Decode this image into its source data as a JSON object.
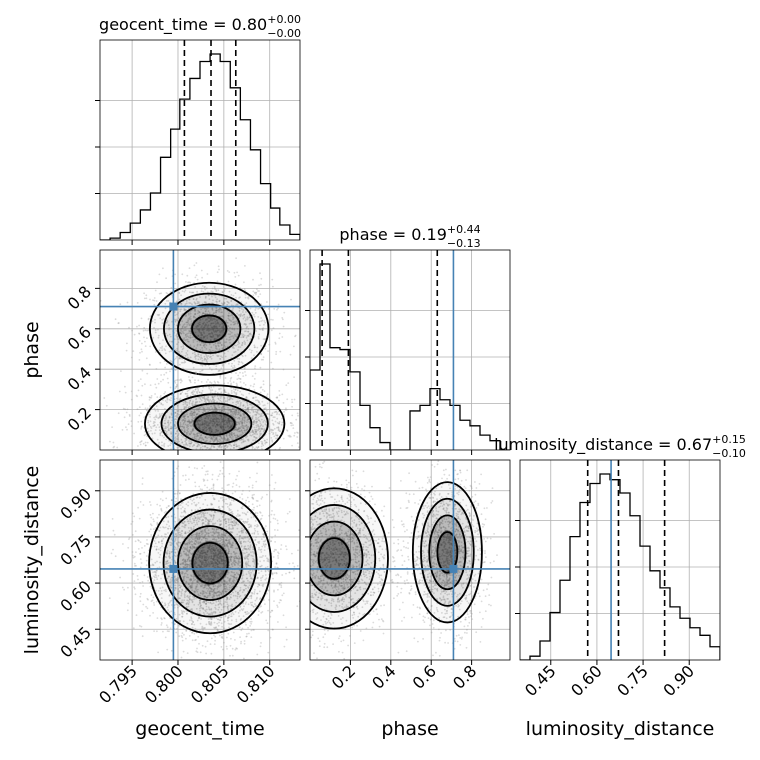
{
  "chart_data": {
    "type": "corner",
    "parameters": [
      {
        "key": "geocent_time",
        "label": "geocent_time",
        "range": [
          0.7915,
          0.8133
        ],
        "ticks": [
          0.795,
          0.8,
          0.805,
          0.81
        ],
        "tick_labels": [
          "0.795",
          "0.800",
          "0.805",
          "0.810"
        ],
        "truth": 0.7995,
        "median": 0.8036,
        "lower": 0.8007,
        "upper": 0.8063,
        "title": {
          "name": "geocent_time",
          "value": "0.80",
          "plus": "+0.00",
          "minus": "−0.00"
        },
        "hist_bins": [
          0.7915,
          0.7926,
          0.7937,
          0.7948,
          0.7959,
          0.797,
          0.7981,
          0.7992,
          0.8002,
          0.8013,
          0.8024,
          0.8035,
          0.8046,
          0.8057,
          0.8068,
          0.8079,
          0.809,
          0.8101,
          0.8111,
          0.8122,
          0.8133
        ],
        "hist_counts": [
          0.0,
          0.01,
          0.04,
          0.09,
          0.16,
          0.25,
          0.44,
          0.59,
          0.75,
          0.86,
          0.95,
          0.99,
          0.95,
          0.81,
          0.64,
          0.48,
          0.3,
          0.17,
          0.08,
          0.03
        ]
      },
      {
        "key": "phase",
        "label": "phase",
        "range": [
          0.0,
          0.99
        ],
        "ticks": [
          0.2,
          0.4,
          0.6,
          0.8
        ],
        "tick_labels": [
          "0.2",
          "0.4",
          "0.6",
          "0.8"
        ],
        "truth": 0.71,
        "median": 0.19,
        "lower": 0.06,
        "upper": 0.63,
        "title": {
          "name": "phase",
          "value": "0.19",
          "plus": "+0.44",
          "minus": "−0.13"
        },
        "hist_bins": [
          0.0,
          0.0495,
          0.099,
          0.1485,
          0.198,
          0.2475,
          0.297,
          0.3465,
          0.396,
          0.4455,
          0.495,
          0.5445,
          0.594,
          0.6435,
          0.693,
          0.7425,
          0.792,
          0.8415,
          0.891,
          0.9405,
          0.99
        ],
        "hist_counts": [
          0.43,
          1.0,
          0.55,
          0.54,
          0.42,
          0.24,
          0.12,
          0.04,
          0.0,
          0.0,
          0.21,
          0.24,
          0.33,
          0.27,
          0.24,
          0.16,
          0.13,
          0.08,
          0.05,
          0.0
        ]
      },
      {
        "key": "luminosity_distance",
        "label": "luminosity_distance",
        "range": [
          0.35,
          1.0
        ],
        "ticks": [
          0.45,
          0.6,
          0.75,
          0.9
        ],
        "tick_labels": [
          "0.45",
          "0.60",
          "0.75",
          "0.90"
        ],
        "truth": 0.646,
        "median": 0.67,
        "lower": 0.57,
        "upper": 0.82,
        "title": {
          "name": "luminosity_distance",
          "value": "0.67",
          "plus": "+0.15",
          "minus": "−0.10"
        },
        "hist_bins": [
          0.35,
          0.3825,
          0.415,
          0.4475,
          0.48,
          0.5125,
          0.545,
          0.5775,
          0.61,
          0.6425,
          0.675,
          0.7075,
          0.74,
          0.7725,
          0.805,
          0.8375,
          0.87,
          0.9025,
          0.935,
          0.9675,
          1.0
        ],
        "hist_counts": [
          0.0,
          0.02,
          0.1,
          0.25,
          0.42,
          0.65,
          0.83,
          0.93,
          0.98,
          0.95,
          0.88,
          0.76,
          0.6,
          0.47,
          0.38,
          0.28,
          0.22,
          0.17,
          0.13,
          0.07
        ]
      }
    ],
    "density_blobs": [
      {
        "pair": "phase_vs_geocent_time",
        "x": 0.8034,
        "y": 0.6,
        "sx": 0.0034,
        "sy": 0.12,
        "n": 1400
      },
      {
        "pair": "phase_vs_geocent_time",
        "x": 0.804,
        "y": 0.13,
        "sx": 0.004,
        "sy": 0.1,
        "n": 2200
      },
      {
        "pair": "luminosity_distance_vs_geocent_time",
        "x": 0.8035,
        "y": 0.665,
        "sx": 0.0035,
        "sy": 0.12,
        "n": 3200
      },
      {
        "pair": "luminosity_distance_vs_phase",
        "x": 0.12,
        "y": 0.68,
        "sx": 0.14,
        "sy": 0.12,
        "n": 1700
      },
      {
        "pair": "luminosity_distance_vs_phase",
        "x": 0.68,
        "y": 0.7,
        "sx": 0.09,
        "sy": 0.12,
        "n": 1400
      }
    ],
    "grid": true,
    "truth_color": "#4682b4",
    "point_color": "#999999"
  }
}
